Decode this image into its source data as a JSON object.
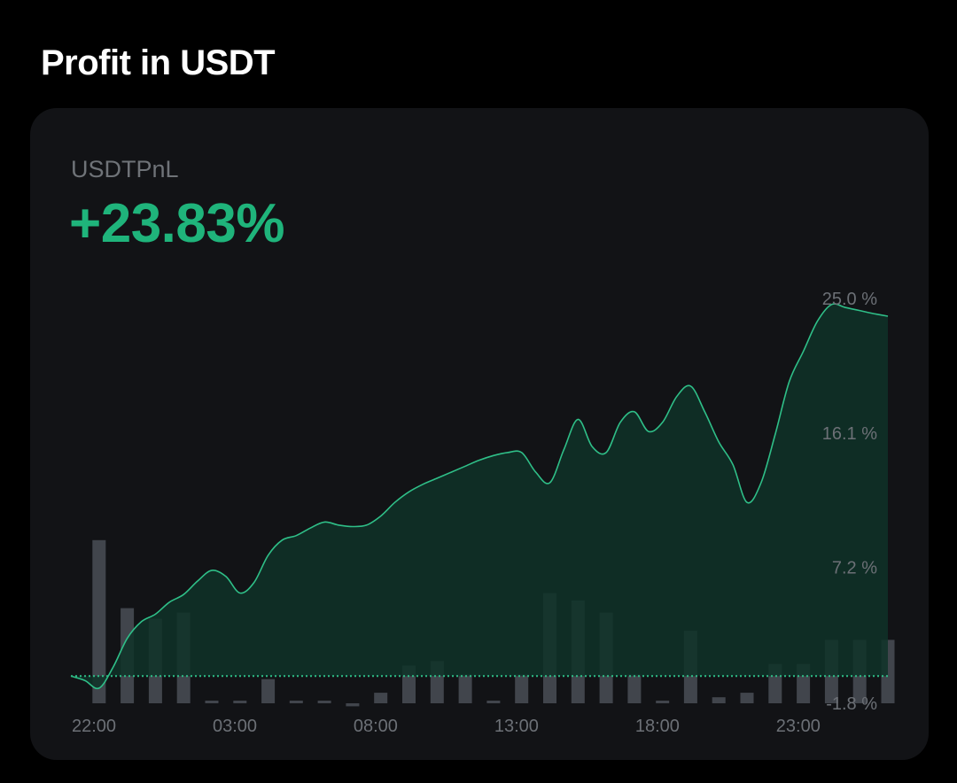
{
  "header": {
    "title": "Profit in USDT"
  },
  "metric": {
    "label": "USDTPnL",
    "value": "+23.83%"
  },
  "colors": {
    "background": "#000000",
    "card": "#121316",
    "accent_green": "#1fb47b",
    "line": "#2fbf88",
    "area_fill": "#0f3328",
    "bar": "#4a4f56",
    "muted_text": "#6c7076"
  },
  "chart_data": {
    "type": "area",
    "title": "",
    "xlabel": "",
    "ylabel": "",
    "x_tick_labels": [
      "22:00",
      "03:00",
      "08:00",
      "13:00",
      "18:00",
      "23:00"
    ],
    "y_tick_labels": [
      "25.0 %",
      "16.1 %",
      "7.2 %",
      "-1.8 %"
    ],
    "ylim": [
      -1.8,
      25.0
    ],
    "grid": false,
    "series": [
      {
        "role": "cumulative-pnl-percent",
        "x_hours": [
          0,
          0.5,
          1,
          1.5,
          2,
          2.5,
          3,
          3.5,
          4,
          4.5,
          5,
          5.5,
          6,
          6.5,
          7,
          7.5,
          8,
          8.5,
          9,
          9.5,
          10,
          10.5,
          11,
          11.5,
          12,
          12.5,
          13,
          13.5,
          14,
          14.5,
          15,
          15.5,
          16,
          16.5,
          17,
          17.5,
          18,
          18.5,
          19,
          19.5,
          20,
          20.5,
          21,
          21.5,
          22,
          22.5,
          23,
          23.5,
          24,
          24.5,
          25,
          25.5,
          26,
          26.5,
          27,
          27.5,
          28,
          28.5,
          29
        ],
        "values": [
          0,
          -0.3,
          -0.8,
          0.6,
          2.5,
          3.6,
          4.1,
          4.9,
          5.4,
          6.3,
          7.0,
          6.6,
          5.5,
          6.2,
          8.0,
          9.0,
          9.3,
          9.8,
          10.2,
          10.0,
          9.9,
          10.0,
          10.6,
          11.5,
          12.2,
          12.7,
          13.1,
          13.5,
          13.9,
          14.3,
          14.6,
          14.8,
          14.8,
          13.5,
          12.8,
          15.0,
          17.0,
          15.2,
          14.8,
          16.8,
          17.5,
          16.2,
          16.8,
          18.5,
          19.2,
          17.5,
          15.5,
          14.0,
          11.5,
          12.8,
          16.0,
          19.5,
          21.5,
          23.5,
          24.6,
          24.4,
          24.2,
          24.0,
          23.83
        ]
      }
    ],
    "bars": {
      "role": "per-period-pnl",
      "x_hours": [
        1,
        2,
        3,
        4,
        5,
        6,
        7,
        8,
        9,
        10,
        11,
        12,
        13,
        14,
        15,
        16,
        17,
        18,
        19,
        20,
        21,
        22,
        23,
        24,
        25,
        26,
        27,
        28,
        29
      ],
      "values": [
        9.0,
        4.5,
        3.8,
        4.2,
        -1.8,
        -1.8,
        -0.2,
        -1.8,
        -1.8,
        -2.0,
        -1.1,
        0.7,
        1.0,
        0.1,
        -1.8,
        0.1,
        5.5,
        5.0,
        4.2,
        0.1,
        -1.8,
        3.0,
        -1.4,
        -1.1,
        0.8,
        0.8,
        2.4,
        2.4,
        2.4
      ]
    }
  }
}
